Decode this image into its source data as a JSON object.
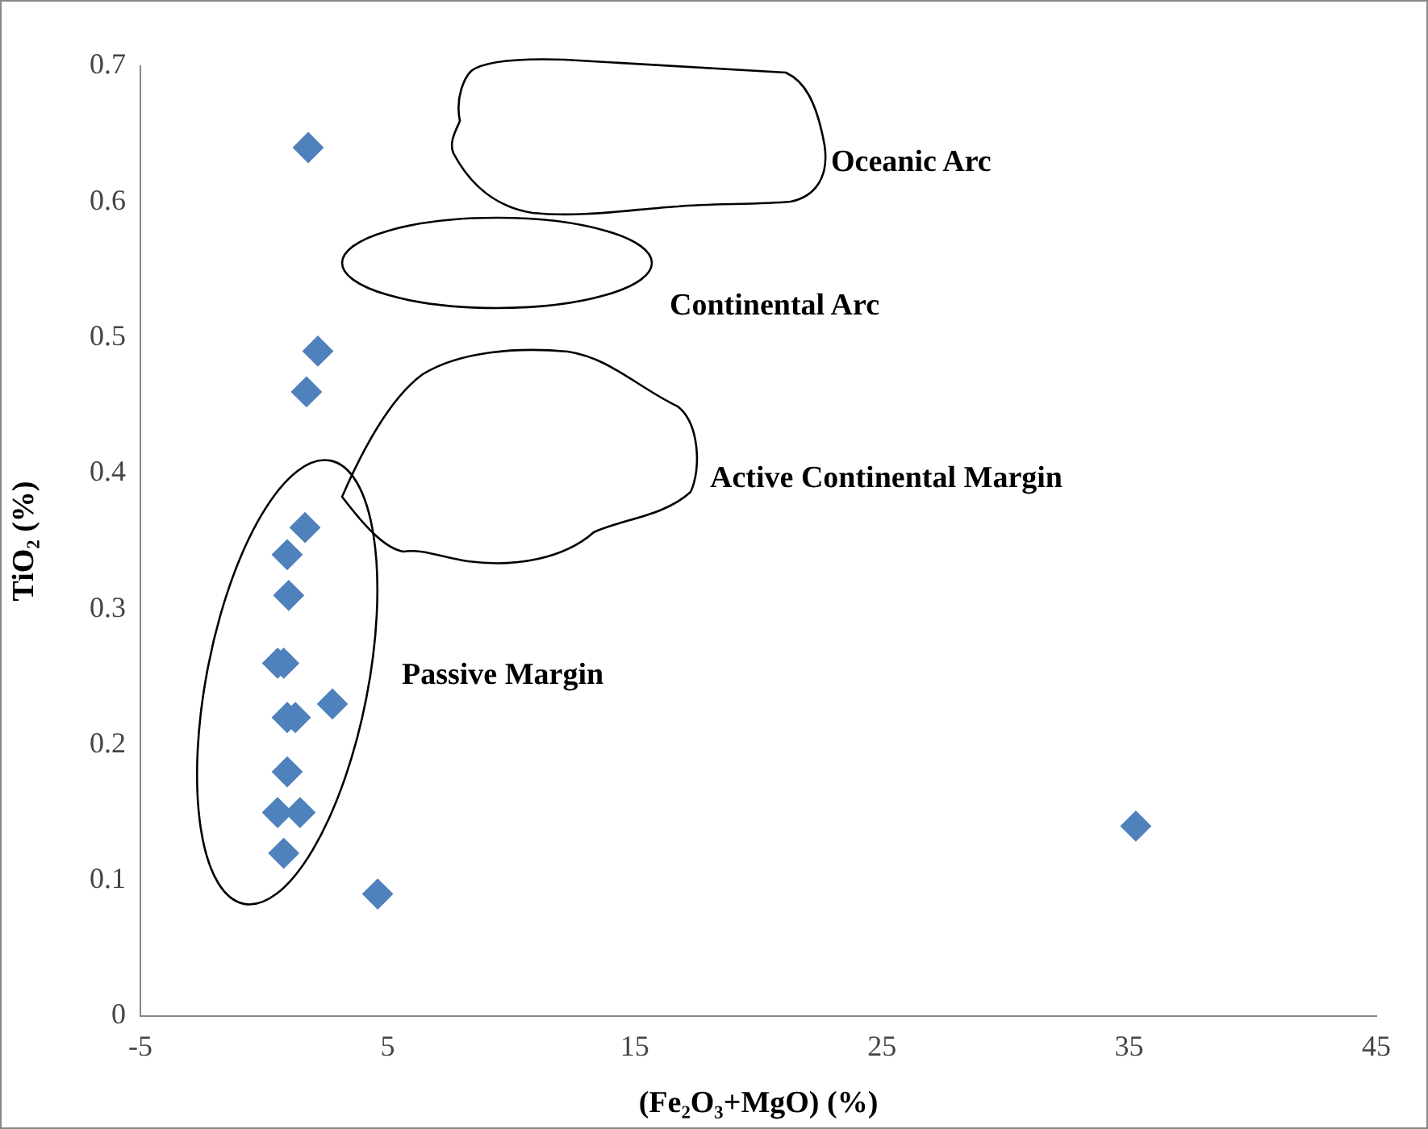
{
  "chart_data": {
    "type": "scatter",
    "xlabel": "(Fe₂O₃+MgO) (%)",
    "ylabel": "TiO₂ (%)",
    "x": [
      1.79,
      2.18,
      1.72,
      1.66,
      0.94,
      1.0,
      0.55,
      0.8,
      2.77,
      0.94,
      1.27,
      0.94,
      0.55,
      1.46,
      0.8,
      4.6,
      35.27
    ],
    "values": [
      0.64,
      0.49,
      0.46,
      0.36,
      0.34,
      0.31,
      0.26,
      0.26,
      0.23,
      0.22,
      0.22,
      0.18,
      0.15,
      0.15,
      0.12,
      0.09,
      0.14
    ],
    "color": "#4f81bd",
    "marker": "diamond",
    "xlim": [
      -5,
      45
    ],
    "xticks": [
      -5,
      5,
      15,
      25,
      35,
      45
    ],
    "ylim": [
      0,
      0.7
    ],
    "yticks": [
      0,
      0.1,
      0.2,
      0.3,
      0.4,
      0.5,
      0.6,
      0.7
    ],
    "grid": false,
    "legend": false,
    "annotations": [
      "Oceanic Arc",
      "Continental Arc",
      "Active Continental Margin",
      "Passive Margin"
    ]
  }
}
